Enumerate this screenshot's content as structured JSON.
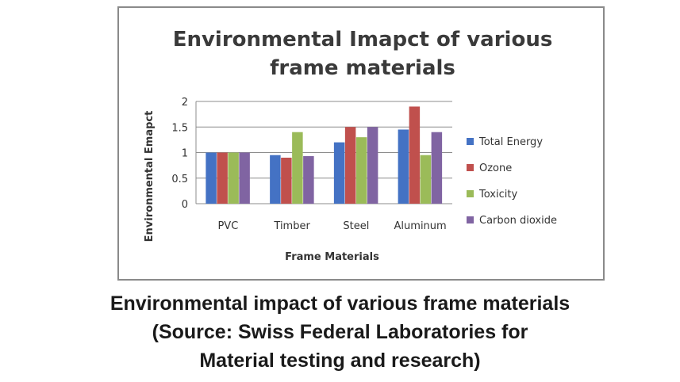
{
  "chart_data": {
    "type": "bar",
    "title_line1": "Environmental Imapct of various",
    "title_line2": "frame materials",
    "xlabel": "Frame Materials",
    "ylabel": "Environmental Emapct",
    "categories": [
      "PVC",
      "Timber",
      "Steel",
      "Aluminum"
    ],
    "series": [
      {
        "name": "Total Energy",
        "color": "#4472c4",
        "values": [
          1.0,
          0.95,
          1.2,
          1.45
        ]
      },
      {
        "name": "Ozone",
        "color": "#c0504d",
        "values": [
          1.0,
          0.9,
          1.5,
          1.9
        ]
      },
      {
        "name": "Toxicity",
        "color": "#9bbb59",
        "values": [
          1.0,
          1.4,
          1.3,
          0.95
        ]
      },
      {
        "name": "Carbon dioxide",
        "color": "#8064a2",
        "values": [
          1.0,
          0.93,
          1.5,
          1.4
        ]
      }
    ],
    "yticks": [
      "0",
      "0.5",
      "1",
      "1.5",
      "2"
    ],
    "ylim": [
      0,
      2
    ],
    "grid": true,
    "legend": "right"
  },
  "caption": {
    "line1": "Environmental impact of various frame materials",
    "line2": "(Source: Swiss Federal Laboratories for",
    "line3": "Material testing and research)"
  }
}
